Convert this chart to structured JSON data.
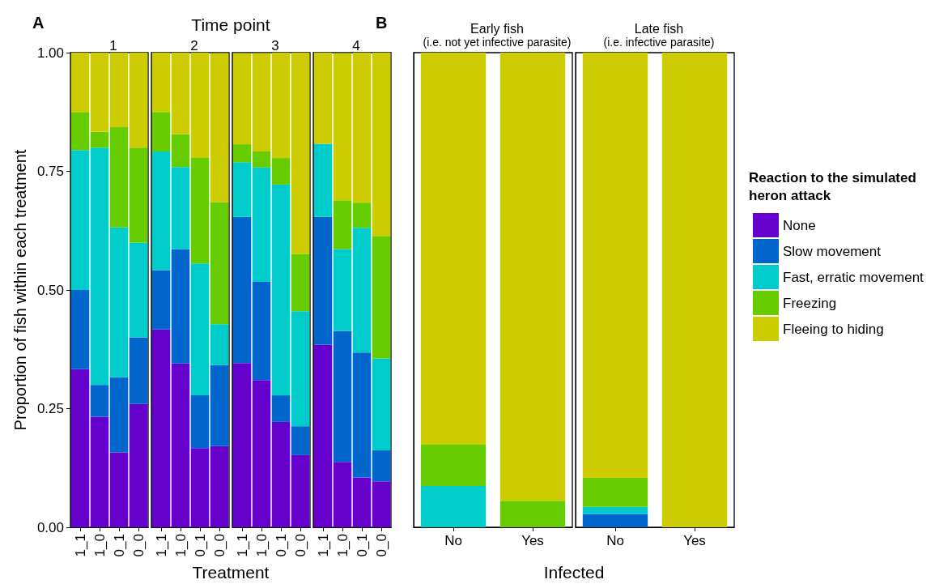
{
  "chart_data": [
    {
      "type": "bar",
      "title": "1",
      "ylabel": "Proportion of fish within each treatment",
      "xlabel": "Treatment",
      "annotations": [
        "A",
        "Time point"
      ],
      "categories": [
        "1_1",
        "1_0",
        "0_1",
        "0_0"
      ],
      "stacked": true,
      "ylim": [
        0,
        1
      ],
      "yticks": [
        {
          "value": 0,
          "label": "0.00"
        },
        {
          "value": 0.25,
          "label": "0.25"
        },
        {
          "value": 0.5,
          "label": "0.50"
        },
        {
          "value": 0.75,
          "label": "0.75"
        },
        {
          "value": 1,
          "label": "1.00"
        }
      ],
      "grid": false,
      "series": [
        {
          "color": "#6600cc",
          "values": [
            0.333,
            0.233,
            0.158,
            0.26
          ]
        },
        {
          "color": "#0066cc",
          "values": [
            0.167,
            0.067,
            0.158,
            0.14
          ]
        },
        {
          "color": "#00cccc",
          "values": [
            0.295,
            0.5,
            0.316,
            0.2
          ]
        },
        {
          "color": "#66cc00",
          "values": [
            0.08,
            0.033,
            0.211,
            0.2
          ]
        },
        {
          "color": "#cccc00",
          "values": [
            0.125,
            0.167,
            0.157,
            0.2
          ]
        }
      ]
    },
    {
      "type": "bar",
      "title": "2",
      "categories": [
        "1_1",
        "1_0",
        "0_1",
        "0_0"
      ],
      "stacked": true,
      "ylim": [
        0,
        1
      ],
      "tick_labels": "x",
      "grid": false,
      "series": [
        {
          "color": "#6600cc",
          "values": [
            0.417,
            0.345,
            0.167,
            0.171
          ]
        },
        {
          "color": "#0066cc",
          "values": [
            0.125,
            0.241,
            0.111,
            0.171
          ]
        },
        {
          "color": "#00cccc",
          "values": [
            0.25,
            0.173,
            0.278,
            0.086
          ]
        },
        {
          "color": "#66cc00",
          "values": [
            0.083,
            0.069,
            0.222,
            0.257
          ]
        },
        {
          "color": "#cccc00",
          "values": [
            0.125,
            0.172,
            0.222,
            0.314
          ]
        }
      ]
    },
    {
      "type": "bar",
      "title": "3",
      "categories": [
        "1_1",
        "1_0",
        "0_1",
        "0_0"
      ],
      "stacked": true,
      "ylim": [
        0,
        1
      ],
      "tick_labels": "x",
      "grid": false,
      "series": [
        {
          "color": "#6600cc",
          "values": [
            0.346,
            0.31,
            0.222,
            0.152
          ]
        },
        {
          "color": "#0066cc",
          "values": [
            0.308,
            0.207,
            0.056,
            0.061
          ]
        },
        {
          "color": "#00cccc",
          "values": [
            0.115,
            0.241,
            0.444,
            0.242
          ]
        },
        {
          "color": "#66cc00",
          "values": [
            0.038,
            0.034,
            0.056,
            0.121
          ]
        },
        {
          "color": "#cccc00",
          "values": [
            0.192,
            0.207,
            0.222,
            0.424
          ]
        }
      ]
    },
    {
      "type": "bar",
      "title": "4",
      "categories": [
        "1_1",
        "1_0",
        "0_1",
        "0_0"
      ],
      "stacked": true,
      "ylim": [
        0,
        1
      ],
      "tick_labels": "x",
      "grid": false,
      "series": [
        {
          "color": "#6600cc",
          "values": [
            0.385,
            0.138,
            0.105,
            0.097
          ]
        },
        {
          "color": "#0066cc",
          "values": [
            0.269,
            0.276,
            0.263,
            0.065
          ]
        },
        {
          "color": "#00cccc",
          "values": [
            0.154,
            0.172,
            0.263,
            0.194
          ]
        },
        {
          "color": "#66cc00",
          "values": [
            0,
            0.103,
            0.053,
            0.258
          ]
        },
        {
          "color": "#cccc00",
          "values": [
            0.192,
            0.31,
            0.316,
            0.387
          ]
        }
      ]
    },
    {
      "type": "bar",
      "title": "Early fish",
      "subtitle": "(i.e. not yet infective parasite)",
      "xlabel": "Infected",
      "annotations": [
        "B"
      ],
      "categories": [
        "No",
        "Yes"
      ],
      "stacked": true,
      "ylim": [
        0,
        1
      ],
      "tick_labels": "x",
      "grid": false,
      "series": [
        {
          "color": "#6600cc",
          "values": [
            0,
            0
          ]
        },
        {
          "color": "#0066cc",
          "values": [
            0,
            0
          ]
        },
        {
          "color": "#00cccc",
          "values": [
            0.087,
            0
          ]
        },
        {
          "color": "#66cc00",
          "values": [
            0.087,
            0.056
          ]
        },
        {
          "color": "#cccc00",
          "values": [
            0.826,
            0.944
          ]
        }
      ]
    },
    {
      "type": "bar",
      "title": "Late fish",
      "subtitle": "(i.e. infective parasite)",
      "legend_title": "Reaction to the simulated heron attack",
      "legend": "right",
      "categories": [
        "No",
        "Yes"
      ],
      "stacked": true,
      "ylim": [
        0,
        1
      ],
      "tick_labels": "x",
      "grid": false,
      "series": [
        {
          "name": "None",
          "color": "#6600cc",
          "values": [
            0,
            0
          ]
        },
        {
          "name": "Slow movement",
          "color": "#0066cc",
          "values": [
            0.028,
            0
          ]
        },
        {
          "name": "Fast, erratic movement",
          "color": "#00cccc",
          "values": [
            0.015,
            0
          ]
        },
        {
          "name": "Freezing",
          "color": "#66cc00",
          "values": [
            0.061,
            0
          ]
        },
        {
          "name": "Fleeing to hiding",
          "color": "#cccc00",
          "values": [
            0.896,
            1
          ]
        }
      ]
    }
  ]
}
